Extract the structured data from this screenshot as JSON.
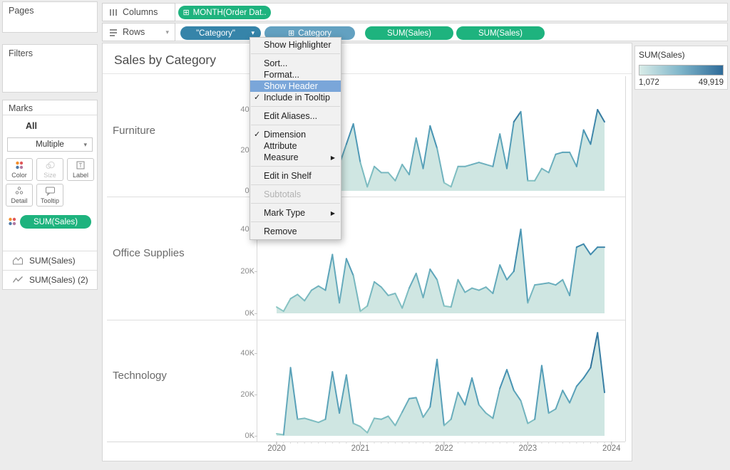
{
  "shelves": {
    "columns": {
      "label": "Columns",
      "pills": [
        {
          "label": "MONTH(Order Dat..",
          "kind": "green",
          "expand": true
        }
      ]
    },
    "rows": {
      "label": "Rows",
      "pills": [
        {
          "label": "\"Category\"",
          "kind": "blue",
          "caret": true
        },
        {
          "label": "Category",
          "kind": "blue-light",
          "expand": true
        },
        {
          "label": "SUM(Sales)",
          "kind": "green"
        },
        {
          "label": "SUM(Sales)",
          "kind": "green"
        }
      ]
    }
  },
  "left_panel": {
    "pages_label": "Pages",
    "filters_label": "Filters",
    "marks": {
      "title": "Marks",
      "tab": "All",
      "mark_type_value": "Multiple",
      "buttons": [
        {
          "label": "Color",
          "icon": "color-icon"
        },
        {
          "label": "Size",
          "icon": "size-icon",
          "disabled": true
        },
        {
          "label": "Label",
          "icon": "label-icon"
        },
        {
          "label": "Detail",
          "icon": "detail-icon"
        },
        {
          "label": "Tooltip",
          "icon": "tooltip-icon"
        }
      ],
      "color_pill": {
        "label": "SUM(Sales)",
        "kind": "green"
      }
    },
    "measure_cards": [
      {
        "icon": "area-chart-icon",
        "label": "SUM(Sales)"
      },
      {
        "icon": "line-chart-icon",
        "label": "SUM(Sales) (2)"
      }
    ]
  },
  "context_menu": {
    "items": [
      {
        "label": "Show Highlighter"
      },
      {
        "type": "separator"
      },
      {
        "label": "Sort..."
      },
      {
        "label": "Format..."
      },
      {
        "label": "Show Header",
        "highlighted": true
      },
      {
        "label": "Include in Tooltip",
        "checked": true
      },
      {
        "type": "separator"
      },
      {
        "label": "Edit Aliases..."
      },
      {
        "type": "separator"
      },
      {
        "label": "Dimension",
        "checked": true
      },
      {
        "label": "Attribute"
      },
      {
        "label": "Measure",
        "submenu": true
      },
      {
        "type": "separator"
      },
      {
        "label": "Edit in Shelf"
      },
      {
        "type": "separator"
      },
      {
        "label": "Subtotals",
        "disabled": true
      },
      {
        "type": "separator"
      },
      {
        "label": "Mark Type",
        "submenu": true
      },
      {
        "type": "separator"
      },
      {
        "label": "Remove"
      }
    ]
  },
  "legend": {
    "title": "SUM(Sales)",
    "min_label": "1,072",
    "max_label": "49,919",
    "gradient": [
      "#d9ece8",
      "#7db4c9",
      "#2f6b99"
    ]
  },
  "chart_data": {
    "type": "area",
    "title": "Sales by Category",
    "x_ticks": [
      "2020",
      "2021",
      "2022",
      "2023",
      "2024"
    ],
    "y_ticks": {
      "labels": [
        "0K",
        "20K",
        "40K"
      ],
      "values": [
        0,
        20,
        40
      ]
    },
    "unit": "USD thousands, monthly SUM(Sales), Jan 2020 - Dec 2023",
    "color_scale": {
      "min": 1.072,
      "max": 49.919,
      "low": "#8fc9c5",
      "mid": "#4a96b5",
      "high": "#215e8c",
      "area_fill": "#cfe6e2"
    },
    "series": [
      {
        "name": "Furniture",
        "values": [
          6,
          2,
          11,
          8,
          7,
          7,
          11,
          6,
          23,
          13,
          23,
          33,
          14,
          2,
          12,
          9,
          9,
          5,
          13,
          8,
          26,
          11,
          32,
          21,
          4,
          2,
          12,
          12,
          13,
          14,
          13,
          12,
          28,
          11,
          34,
          39,
          5,
          5,
          11,
          9,
          18,
          19,
          19,
          12,
          30,
          23,
          40,
          34
        ]
      },
      {
        "name": "Office Supplies",
        "values": [
          3,
          1,
          7,
          9,
          6,
          11,
          13,
          11,
          28,
          5,
          26,
          18,
          1,
          3.5,
          15,
          12.5,
          8.5,
          9.5,
          2.5,
          12,
          19,
          7.5,
          21,
          16,
          3.5,
          3,
          16,
          10,
          12,
          11,
          12.5,
          9.5,
          23,
          16,
          20,
          40,
          5,
          13.5,
          14,
          14.5,
          13.5,
          16,
          8.5,
          31.5,
          33,
          28,
          31.5,
          31.5
        ]
      },
      {
        "name": "Technology",
        "values": [
          1,
          0.5,
          33,
          8,
          8.5,
          7.5,
          6.5,
          8,
          31,
          11,
          29.5,
          6,
          4.5,
          1.5,
          8.5,
          8,
          9.5,
          5,
          11.5,
          18,
          18.5,
          9,
          14,
          37,
          5,
          8,
          21,
          15,
          28,
          15,
          11,
          8.5,
          23,
          32,
          22,
          17,
          6,
          8,
          34,
          11,
          13,
          22,
          16,
          24,
          28,
          33,
          49.9,
          21
        ]
      }
    ]
  }
}
